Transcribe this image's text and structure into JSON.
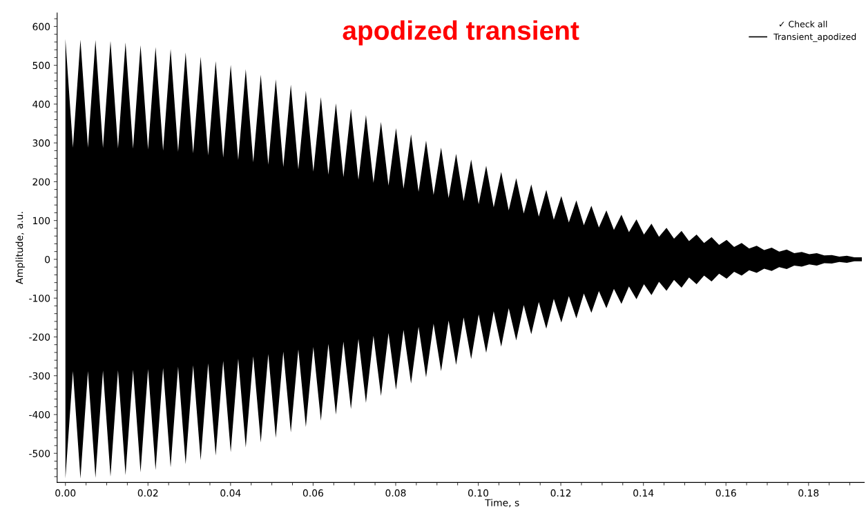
{
  "chart_data": {
    "type": "area",
    "title": "apodized transient",
    "xlabel": "Time, s",
    "ylabel": "Amplitude, a.u.",
    "legend_title": "✓ Check all",
    "legend": "top right",
    "grid": false,
    "xlim": [
      -0.002,
      0.1935
    ],
    "xticks": [
      {
        "value": 0,
        "label": "0.00"
      },
      0.02,
      0.04,
      0.06,
      0.08,
      {
        "value": 0.1,
        "label": "0.10"
      },
      0.12,
      0.14,
      0.16,
      0.18
    ],
    "ylim": [
      -575,
      635
    ],
    "yticks": [
      -500,
      -400,
      -300,
      -200,
      -100,
      0,
      100,
      200,
      300,
      400,
      500,
      600
    ],
    "series": [
      {
        "name": "Transient_apodized",
        "color": "#000000",
        "x": [
          0,
          0.00182,
          0.00364,
          0.00546,
          0.00728,
          0.0091,
          0.01092,
          0.01274,
          0.01456,
          0.01638,
          0.0182,
          0.02002,
          0.02184,
          0.02366,
          0.02548,
          0.0273,
          0.02912,
          0.03094,
          0.03276,
          0.03458,
          0.0364,
          0.03822,
          0.04004,
          0.04186,
          0.04368,
          0.0455,
          0.04732,
          0.04914,
          0.05096,
          0.05278,
          0.0546,
          0.05642,
          0.05824,
          0.06006,
          0.06188,
          0.0637,
          0.06552,
          0.06734,
          0.06916,
          0.07098,
          0.0728,
          0.07462,
          0.07644,
          0.07826,
          0.08008,
          0.0819,
          0.08372,
          0.08554,
          0.08736,
          0.08918,
          0.091,
          0.09282,
          0.09464,
          0.09646,
          0.09828,
          0.1001,
          0.10192,
          0.10374,
          0.10556,
          0.10738,
          0.1092,
          0.11102,
          0.11284,
          0.11466,
          0.11648,
          0.1183,
          0.12012,
          0.12194,
          0.12376,
          0.12558,
          0.1274,
          0.12922,
          0.13104,
          0.13286,
          0.13468,
          0.1365,
          0.13832,
          0.14014,
          0.14196,
          0.14378,
          0.1456,
          0.14742,
          0.14924,
          0.15106,
          0.15288,
          0.1547,
          0.15652,
          0.15834,
          0.16016,
          0.16198,
          0.1638,
          0.16562,
          0.16744,
          0.16926,
          0.17108,
          0.1729,
          0.17472,
          0.17654,
          0.17836,
          0.18018,
          0.182,
          0.18382,
          0.18564,
          0.18746,
          0.18928,
          0.1911,
          0.19292
        ],
        "values": [
          568,
          288,
          566,
          288,
          565,
          287,
          563,
          286,
          559,
          285,
          552,
          283,
          547,
          280,
          542,
          277,
          533,
          273,
          522,
          268,
          511,
          262,
          501,
          256,
          490,
          250,
          476,
          244,
          464,
          238,
          450,
          232,
          434,
          226,
          418,
          218,
          402,
          212,
          388,
          205,
          372,
          197,
          354,
          190,
          338,
          182,
          322,
          174,
          306,
          166,
          288,
          158,
          272,
          150,
          257,
          142,
          241,
          134,
          225,
          126,
          209,
          118,
          193,
          110,
          179,
          102,
          163,
          95,
          152,
          88,
          138,
          82,
          126,
          76,
          115,
          70,
          103,
          64,
          92,
          58,
          81,
          53,
          73,
          47,
          64,
          42,
          57,
          37,
          50,
          32,
          42,
          28,
          35,
          24,
          30,
          20,
          25,
          16,
          19,
          13,
          16,
          10,
          11,
          7,
          9,
          5,
          5
        ]
      },
      {
        "color": "#000000",
        "x": [
          0,
          0.00182,
          0.00364,
          0.00546,
          0.00728,
          0.0091,
          0.01092,
          0.01274,
          0.01456,
          0.01638,
          0.0182,
          0.02002,
          0.02184,
          0.02366,
          0.02548,
          0.0273,
          0.02912,
          0.03094,
          0.03276,
          0.03458,
          0.0364,
          0.03822,
          0.04004,
          0.04186,
          0.04368,
          0.0455,
          0.04732,
          0.04914,
          0.05096,
          0.05278,
          0.0546,
          0.05642,
          0.05824,
          0.06006,
          0.06188,
          0.0637,
          0.06552,
          0.06734,
          0.06916,
          0.07098,
          0.0728,
          0.07462,
          0.07644,
          0.07826,
          0.08008,
          0.0819,
          0.08372,
          0.08554,
          0.08736,
          0.08918,
          0.091,
          0.09282,
          0.09464,
          0.09646,
          0.09828,
          0.1001,
          0.10192,
          0.10374,
          0.10556,
          0.10738,
          0.1092,
          0.11102,
          0.11284,
          0.11466,
          0.11648,
          0.1183,
          0.12012,
          0.12194,
          0.12376,
          0.12558,
          0.1274,
          0.12922,
          0.13104,
          0.13286,
          0.13468,
          0.1365,
          0.13832,
          0.14014,
          0.14196,
          0.14378,
          0.1456,
          0.14742,
          0.14924,
          0.15106,
          0.15288,
          0.1547,
          0.15652,
          0.15834,
          0.16016,
          0.16198,
          0.1638,
          0.16562,
          0.16744,
          0.16926,
          0.17108,
          0.1729,
          0.17472,
          0.17654,
          0.17836,
          0.18018,
          0.182,
          0.18382,
          0.18564,
          0.18746,
          0.18928,
          0.1911,
          0.19292
        ],
        "values": [
          -565,
          -288,
          -565,
          -288,
          -563,
          -287,
          -560,
          -286,
          -556,
          -285,
          -549,
          -283,
          -543,
          -280,
          -536,
          -277,
          -528,
          -273,
          -518,
          -268,
          -506,
          -262,
          -497,
          -256,
          -485,
          -250,
          -472,
          -244,
          -460,
          -238,
          -446,
          -232,
          -432,
          -226,
          -416,
          -218,
          -400,
          -212,
          -386,
          -205,
          -370,
          -197,
          -352,
          -190,
          -336,
          -182,
          -320,
          -174,
          -304,
          -166,
          -288,
          -158,
          -272,
          -150,
          -257,
          -142,
          -241,
          -134,
          -225,
          -126,
          -209,
          -118,
          -193,
          -110,
          -179,
          -102,
          -163,
          -95,
          -152,
          -88,
          -138,
          -82,
          -126,
          -76,
          -115,
          -70,
          -103,
          -64,
          -92,
          -58,
          -81,
          -53,
          -73,
          -47,
          -64,
          -42,
          -57,
          -37,
          -50,
          -32,
          -42,
          -28,
          -35,
          -24,
          -30,
          -20,
          -25,
          -16,
          -19,
          -13,
          -16,
          -10,
          -11,
          -7,
          -9,
          -5,
          -5
        ]
      }
    ]
  }
}
